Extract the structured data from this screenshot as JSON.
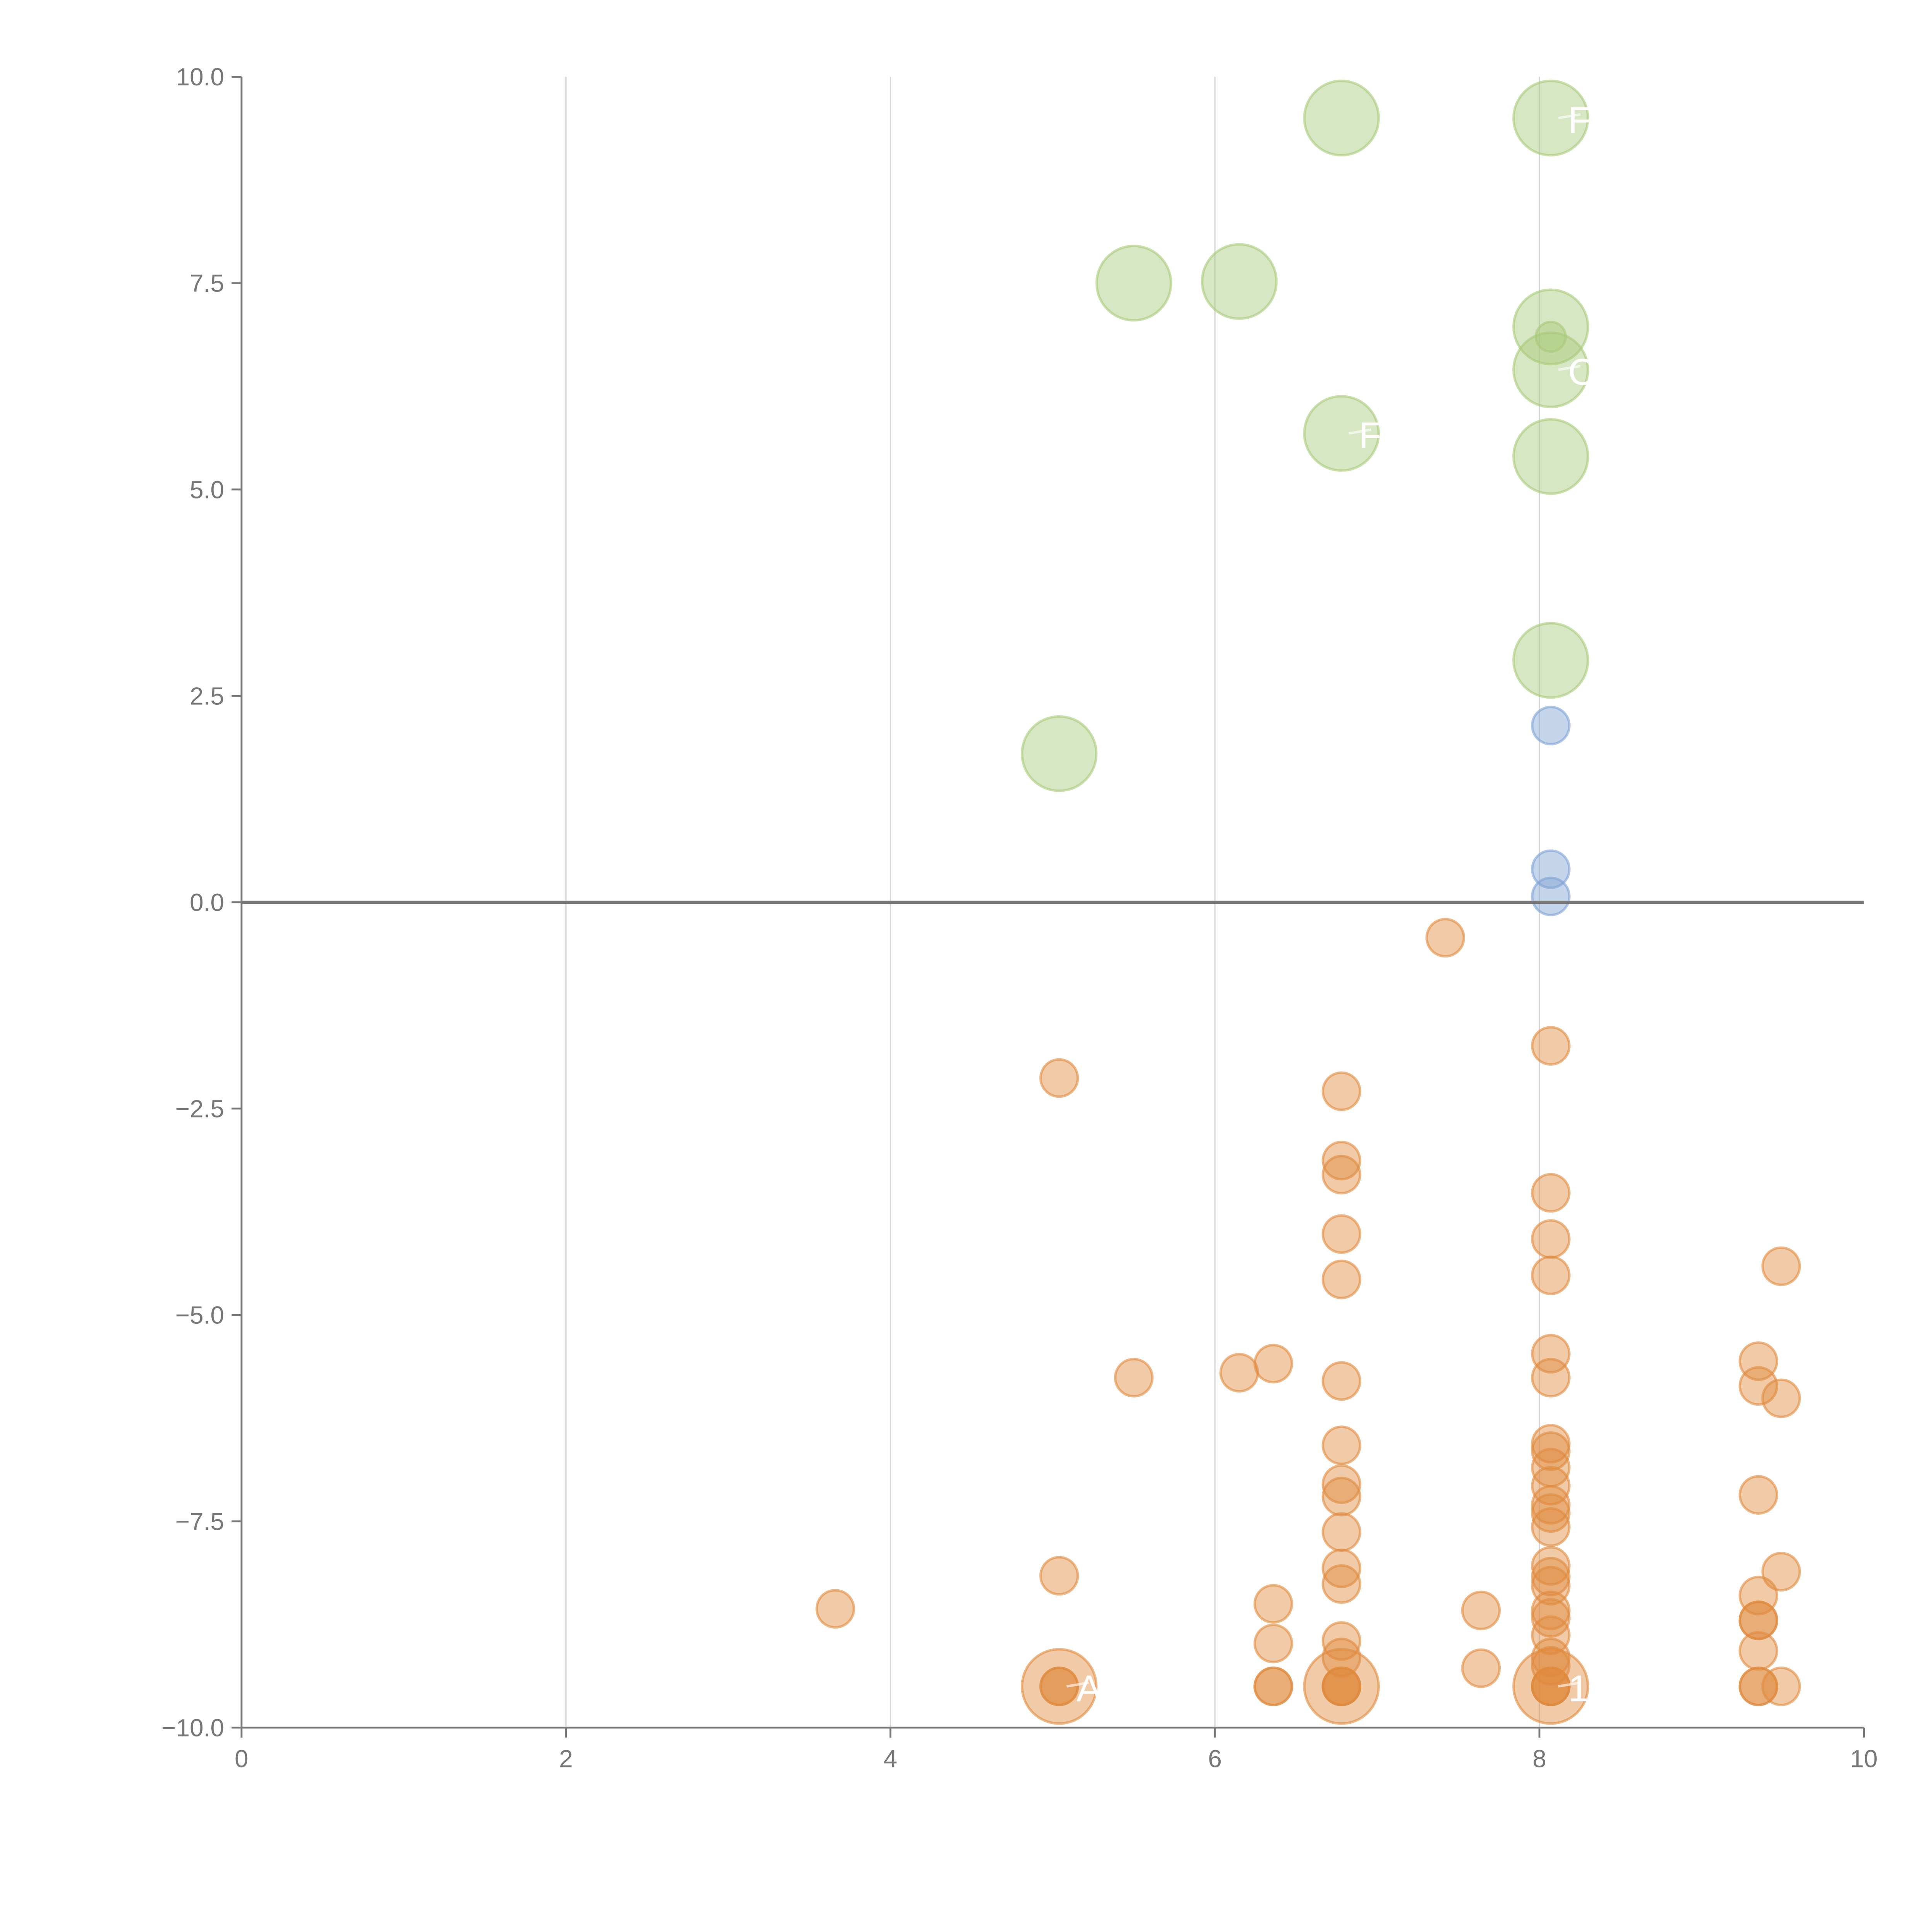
{
  "chart_data": {
    "type": "scatter",
    "title": "",
    "xlabel": "",
    "ylabel": "",
    "xlim": [
      0,
      10
    ],
    "ylim": [
      -10,
      10
    ],
    "x_ticks": [
      "0",
      "2",
      "4",
      "6",
      "8",
      "10"
    ],
    "y_ticks": [
      "10.0",
      "7.5",
      "5.0",
      "2.5",
      "0.0",
      "−2.5",
      "−5.0",
      "−7.5",
      "−10.0"
    ],
    "grid": "vertical",
    "series": [
      {
        "name": "green",
        "color": "#a9c97a",
        "points": [
          [
            6.78,
            9.5,
            3
          ],
          [
            8.07,
            9.5,
            3
          ],
          [
            5.5,
            7.5,
            3
          ],
          [
            6.15,
            7.52,
            3
          ],
          [
            8.07,
            6.97,
            3
          ],
          [
            8.07,
            6.85,
            1.2
          ],
          [
            8.07,
            6.45,
            3
          ],
          [
            6.78,
            5.68,
            3
          ],
          [
            8.07,
            5.4,
            3
          ],
          [
            8.07,
            2.93,
            3
          ],
          [
            5.04,
            1.8,
            3
          ]
        ]
      },
      {
        "name": "blue",
        "color": "#7fa1d3",
        "points": [
          [
            8.07,
            2.14,
            1.5
          ],
          [
            8.07,
            0.4,
            1.5
          ],
          [
            8.07,
            0.07,
            1.5
          ]
        ]
      },
      {
        "name": "orange",
        "color": "#e08a3e",
        "points": [
          [
            7.42,
            -0.43,
            1.5
          ],
          [
            8.07,
            -1.74,
            1.5
          ],
          [
            5.04,
            -2.13,
            1.5
          ],
          [
            6.78,
            -2.29,
            1.5
          ],
          [
            6.78,
            -3.13,
            1.5
          ],
          [
            6.78,
            -3.3,
            1.5
          ],
          [
            6.78,
            -4.02,
            1.5
          ],
          [
            6.78,
            -4.57,
            1.5
          ],
          [
            6.78,
            -5.8,
            1.5
          ],
          [
            6.78,
            -6.58,
            1.5
          ],
          [
            6.78,
            -7.05,
            1.5
          ],
          [
            6.78,
            -7.2,
            1.5
          ],
          [
            6.78,
            -7.63,
            1.5
          ],
          [
            6.78,
            -8.07,
            1.5
          ],
          [
            6.78,
            -8.26,
            1.5
          ],
          [
            6.78,
            -8.95,
            1.5
          ],
          [
            6.78,
            -9.15,
            1.5
          ],
          [
            8.07,
            -3.52,
            1.5
          ],
          [
            8.07,
            -4.08,
            1.5
          ],
          [
            8.07,
            -4.52,
            1.5
          ],
          [
            8.07,
            -5.47,
            1.5
          ],
          [
            8.07,
            -5.76,
            1.5
          ],
          [
            8.07,
            -6.56,
            1.5
          ],
          [
            8.07,
            -6.65,
            1.5
          ],
          [
            8.07,
            -6.85,
            1.5
          ],
          [
            8.07,
            -7.07,
            1.5
          ],
          [
            8.07,
            -7.3,
            1.5
          ],
          [
            8.07,
            -7.4,
            1.5
          ],
          [
            8.07,
            -7.57,
            1.5
          ],
          [
            8.07,
            -8.04,
            1.5
          ],
          [
            8.07,
            -8.17,
            1.5
          ],
          [
            8.07,
            -8.28,
            1.5
          ],
          [
            8.07,
            -8.58,
            1.5
          ],
          [
            8.07,
            -8.67,
            1.5
          ],
          [
            8.07,
            -8.88,
            1.5
          ],
          [
            8.07,
            -9.15,
            1.5
          ],
          [
            8.07,
            -9.25,
            1.5
          ],
          [
            5.5,
            -5.76,
            1.5
          ],
          [
            6.15,
            -5.7,
            1.5
          ],
          [
            6.36,
            -5.59,
            1.5
          ],
          [
            9.49,
            -4.41,
            1.5
          ],
          [
            9.35,
            -5.56,
            1.5
          ],
          [
            9.35,
            -5.86,
            1.5
          ],
          [
            9.49,
            -6.01,
            1.5
          ],
          [
            9.35,
            -7.18,
            1.5
          ],
          [
            9.49,
            -8.11,
            1.5
          ],
          [
            9.35,
            -8.4,
            1.5
          ],
          [
            9.35,
            -8.7,
            1.5
          ],
          [
            9.35,
            -8.7,
            1.5
          ],
          [
            9.35,
            -9.07,
            1.5
          ],
          [
            9.35,
            -9.5,
            1.5
          ],
          [
            9.35,
            -9.5,
            1.5
          ],
          [
            9.49,
            -9.5,
            1.5
          ],
          [
            3.66,
            -8.56,
            1.5
          ],
          [
            5.04,
            -8.16,
            1.5
          ],
          [
            6.36,
            -8.5,
            1.5
          ],
          [
            6.36,
            -8.98,
            1.5
          ],
          [
            7.64,
            -8.58,
            1.5
          ],
          [
            7.64,
            -9.28,
            1.5
          ],
          [
            5.04,
            -9.5,
            3
          ],
          [
            6.78,
            -9.5,
            3
          ],
          [
            8.07,
            -9.5,
            3
          ],
          [
            5.04,
            -9.5,
            1.5
          ],
          [
            5.04,
            -9.5,
            1.5
          ],
          [
            6.36,
            -9.5,
            1.5
          ],
          [
            6.36,
            -9.5,
            1.5
          ],
          [
            6.78,
            -9.5,
            1.5
          ],
          [
            6.78,
            -9.5,
            1.5
          ],
          [
            6.78,
            -9.5,
            1.5
          ],
          [
            8.07,
            -9.5,
            1.5
          ],
          [
            8.07,
            -9.5,
            1.5
          ],
          [
            8.07,
            -9.5,
            1.5
          ]
        ]
      }
    ],
    "annotations": [
      {
        "text": "A",
        "x": 5.04,
        "y": -9.5
      },
      {
        "text": "1",
        "x": 8.07,
        "y": -9.5
      },
      {
        "text": "F",
        "x": 8.07,
        "y": 9.5
      },
      {
        "text": "F",
        "x": 6.78,
        "y": 5.68
      },
      {
        "text": "C",
        "x": 8.07,
        "y": 6.45
      }
    ]
  }
}
